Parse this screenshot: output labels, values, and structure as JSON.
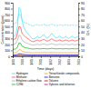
{
  "chart_data": {
    "type": "line",
    "x_label": "Time (days)",
    "y_label": "Concentration (ppm)",
    "y2_label": "CH₄ (%)",
    "x": [
      0,
      1,
      2,
      3,
      4,
      5,
      6,
      7,
      8,
      9,
      10,
      11,
      12,
      13,
      14,
      15,
      16,
      17,
      18,
      19,
      20,
      21,
      22,
      23,
      24,
      25,
      26,
      27,
      28,
      29,
      30,
      31,
      32,
      33,
      34,
      35,
      36,
      37,
      38,
      39,
      40,
      41,
      42
    ],
    "xlim": [
      0,
      42
    ],
    "xticks": [
      {
        "value": 0,
        "label": "1/00"
      },
      {
        "value": 6,
        "label": "7/00"
      },
      {
        "value": 12,
        "label": "1/01"
      },
      {
        "value": 18,
        "label": "7/01"
      },
      {
        "value": 24,
        "label": "1/02"
      },
      {
        "value": 30,
        "label": "7/02"
      },
      {
        "value": 36,
        "label": "1/03"
      },
      {
        "value": 42,
        "label": "7/03"
      }
    ],
    "ylim": [
      0,
      900
    ],
    "yticks": [
      0,
      100,
      200,
      300,
      400,
      500,
      600,
      700,
      800,
      900
    ],
    "y2lim": [
      0,
      90
    ],
    "y2ticks": [
      0,
      10,
      20,
      30,
      40,
      50,
      60,
      70,
      80,
      90
    ],
    "grid": false,
    "legend": "bottom",
    "series": [
      {
        "name": "Hydrogen",
        "color": "#44ddff",
        "values": [
          330,
          340,
          360,
          500,
          820,
          790,
          600,
          490,
          440,
          400,
          370,
          340,
          310,
          290,
          300,
          315,
          340,
          305,
          320,
          345,
          360,
          325,
          300,
          320,
          350,
          385,
          355,
          325,
          305,
          320,
          345,
          320,
          305,
          315,
          335,
          315,
          300,
          320,
          340,
          320,
          310,
          320,
          335
        ]
      },
      {
        "name": "Methane",
        "color": "#ff4444",
        "values": [
          270,
          290,
          300,
          380,
          500,
          490,
          380,
          355,
          330,
          310,
          290,
          270,
          255,
          245,
          255,
          265,
          275,
          255,
          265,
          275,
          285,
          265,
          255,
          265,
          275,
          295,
          275,
          265,
          255,
          265,
          275,
          265,
          255,
          265,
          275,
          265,
          255,
          265,
          275,
          265,
          255,
          265,
          275
        ]
      },
      {
        "name": "Ethylene carbon flow",
        "color": "#aaaaaa",
        "values": [
          195,
          205,
          215,
          265,
          355,
          345,
          270,
          250,
          232,
          222,
          212,
          202,
          193,
          188,
          193,
          198,
          203,
          193,
          198,
          203,
          208,
          198,
          193,
          198,
          203,
          213,
          203,
          198,
          193,
          198,
          203,
          198,
          193,
          198,
          203,
          198,
          193,
          198,
          203,
          198,
          193,
          198,
          203
        ]
      },
      {
        "name": "C2H4",
        "color": "#00bb00",
        "values": [
          115,
          120,
          125,
          155,
          225,
          220,
          170,
          155,
          145,
          140,
          135,
          130,
          125,
          122,
          125,
          127,
          129,
          125,
          127,
          129,
          132,
          127,
          125,
          127,
          129,
          135,
          129,
          127,
          125,
          127,
          129,
          127,
          125,
          127,
          129,
          127,
          125,
          127,
          129,
          127,
          125,
          127,
          129
        ]
      },
      {
        "name": "Tetrachloride compounds",
        "color": "#ff9900",
        "values": [
          55,
          58,
          62,
          78,
          112,
          108,
          84,
          76,
          71,
          68,
          66,
          63,
          61,
          59,
          61,
          62,
          63,
          61,
          62,
          63,
          64,
          62,
          61,
          62,
          63,
          65,
          63,
          62,
          61,
          62,
          63,
          62,
          61,
          62,
          63,
          62,
          61,
          62,
          63,
          62,
          61,
          62,
          63
        ]
      },
      {
        "name": "Benzene",
        "color": "#0000dd",
        "values": [
          22,
          23,
          24,
          30,
          43,
          42,
          33,
          30,
          28,
          27,
          26,
          25,
          24,
          23,
          24,
          25,
          25,
          24,
          24,
          25,
          25,
          24,
          24,
          24,
          25,
          26,
          25,
          24,
          24,
          24,
          25,
          24,
          24,
          24,
          25,
          24,
          24,
          24,
          25,
          24,
          24,
          24,
          25
        ]
      },
      {
        "name": "Toluene",
        "color": "#aa0000",
        "values": [
          9,
          9,
          10,
          12,
          17,
          17,
          13,
          12,
          11,
          11,
          10,
          10,
          9,
          9,
          9,
          10,
          10,
          9,
          9,
          10,
          10,
          9,
          9,
          9,
          10,
          10,
          10,
          9,
          9,
          9,
          10,
          9,
          9,
          9,
          10,
          9,
          9,
          9,
          10,
          9,
          9,
          9,
          10
        ]
      },
      {
        "name": "Xylenes and toluenes",
        "color": "#aa00aa",
        "values": [
          4,
          4,
          4,
          5,
          7,
          7,
          6,
          5,
          5,
          4,
          4,
          4,
          4,
          4,
          4,
          4,
          4,
          4,
          4,
          4,
          4,
          4,
          4,
          4,
          4,
          4,
          4,
          4,
          4,
          4,
          4,
          4,
          4,
          4,
          4,
          4,
          4,
          4,
          4,
          4,
          4,
          4,
          4
        ]
      },
      {
        "color": "#44ddff",
        "axis": "y2",
        "line_style": "dashed",
        "values": [
          54,
          55,
          56,
          61,
          71,
          69,
          61,
          58,
          56,
          55,
          54,
          53,
          52,
          51,
          52,
          53,
          53,
          52,
          52,
          53,
          54,
          52,
          52,
          52,
          53,
          54,
          53,
          52,
          52,
          52,
          53,
          52,
          52,
          52,
          53,
          52,
          52,
          52,
          53,
          52,
          52,
          52,
          53
        ]
      }
    ]
  }
}
